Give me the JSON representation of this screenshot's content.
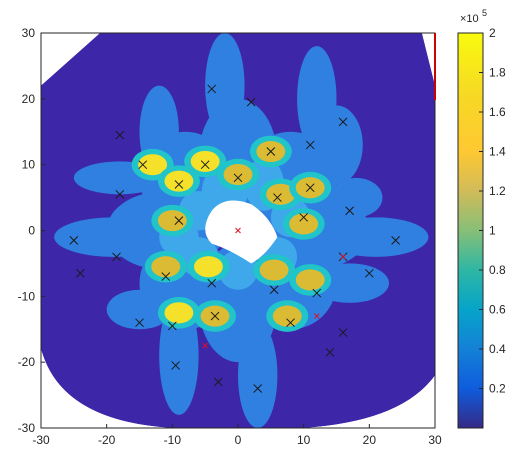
{
  "chart_data": {
    "type": "heatmap",
    "title": "",
    "xlabel": "",
    "ylabel": "",
    "xlim": [
      -30,
      30
    ],
    "ylim": [
      -30,
      30
    ],
    "x_ticks": [
      "-30",
      "-20",
      "-10",
      "0",
      "10",
      "20",
      "30"
    ],
    "y_ticks": [
      "30",
      "20",
      "10",
      "0",
      "-10",
      "-20",
      "-30"
    ],
    "grid": true,
    "colormap": "parula",
    "colorbar": {
      "range": [
        0,
        200000
      ],
      "tick_labels": [
        "2",
        "1.8",
        "1.6",
        "1.4",
        "1.2",
        "1",
        "0.8",
        "0.6",
        "0.4",
        "0.2"
      ],
      "tick_values": [
        2,
        1.8,
        1.6,
        1.4,
        1.2,
        1,
        0.8,
        0.6,
        0.4,
        0.2
      ],
      "exponent_base": "×10",
      "exponent_power": "5"
    },
    "markers_black_x": [
      [
        -4,
        21.5
      ],
      [
        2,
        19.5
      ],
      [
        -18,
        14.5
      ],
      [
        16,
        16.5
      ],
      [
        11,
        13
      ],
      [
        5,
        12
      ],
      [
        -14.5,
        10
      ],
      [
        -5,
        10
      ],
      [
        -9,
        7
      ],
      [
        0,
        8
      ],
      [
        11,
        6.5
      ],
      [
        -18,
        5.5
      ],
      [
        6,
        5
      ],
      [
        17,
        3
      ],
      [
        -9,
        1.5
      ],
      [
        10,
        2
      ],
      [
        -25,
        -1.5
      ],
      [
        24,
        -1.5
      ],
      [
        16,
        -4
      ],
      [
        -24,
        -6.5
      ],
      [
        20,
        -6.5
      ],
      [
        -11,
        -7
      ],
      [
        -4,
        -8
      ],
      [
        -18.5,
        -4
      ],
      [
        5.5,
        -9
      ],
      [
        12,
        -9.5
      ],
      [
        -10,
        -14.5
      ],
      [
        -3.5,
        -13
      ],
      [
        8,
        -14
      ],
      [
        16,
        -15.5
      ],
      [
        -15,
        -14
      ],
      [
        14,
        -18.5
      ],
      [
        -9.5,
        -20.5
      ],
      [
        -3,
        -23
      ],
      [
        3,
        -24
      ]
    ],
    "markers_red_x": [
      [
        0,
        0
      ],
      [
        16,
        -4
      ],
      [
        12,
        -13
      ],
      [
        -5,
        -17.5
      ]
    ],
    "hot_spots": [
      {
        "x": -13,
        "y": 10,
        "v": 1.8
      },
      {
        "x": -9,
        "y": 7.5,
        "v": 1.7
      },
      {
        "x": -5,
        "y": 10.5,
        "v": 1.75
      },
      {
        "x": 0,
        "y": 8.5,
        "v": 1.6
      },
      {
        "x": 5,
        "y": 12,
        "v": 1.6
      },
      {
        "x": 6.5,
        "y": 5.5,
        "v": 1.6
      },
      {
        "x": 11,
        "y": 6.5,
        "v": 1.5
      },
      {
        "x": 10,
        "y": 1,
        "v": 1.6
      },
      {
        "x": -10,
        "y": 1.5,
        "v": 1.45
      },
      {
        "x": -4.5,
        "y": -5.5,
        "v": 1.7
      },
      {
        "x": -11,
        "y": -5.5,
        "v": 1.6
      },
      {
        "x": 5.5,
        "y": -6,
        "v": 1.6
      },
      {
        "x": 11,
        "y": -7.5,
        "v": 1.6
      },
      {
        "x": -9,
        "y": -12.5,
        "v": 2.0
      },
      {
        "x": -3.5,
        "y": -13,
        "v": 1.6
      },
      {
        "x": 7.5,
        "y": -13,
        "v": 1.4
      }
    ]
  },
  "colors": {
    "background": "#ffffff",
    "axis": "#262626",
    "grid": "#dcdcdc",
    "boundary_red": "#d00000",
    "marker_black": "#1a1a1a",
    "marker_red": "#e01020",
    "base_dark": "#3e26a8",
    "mid_blue": "#2f80e0",
    "light_blue": "#3fa8ea",
    "cyan": "#21c4c9",
    "yellow": "#f5e12a",
    "gold": "#dcbb34"
  }
}
